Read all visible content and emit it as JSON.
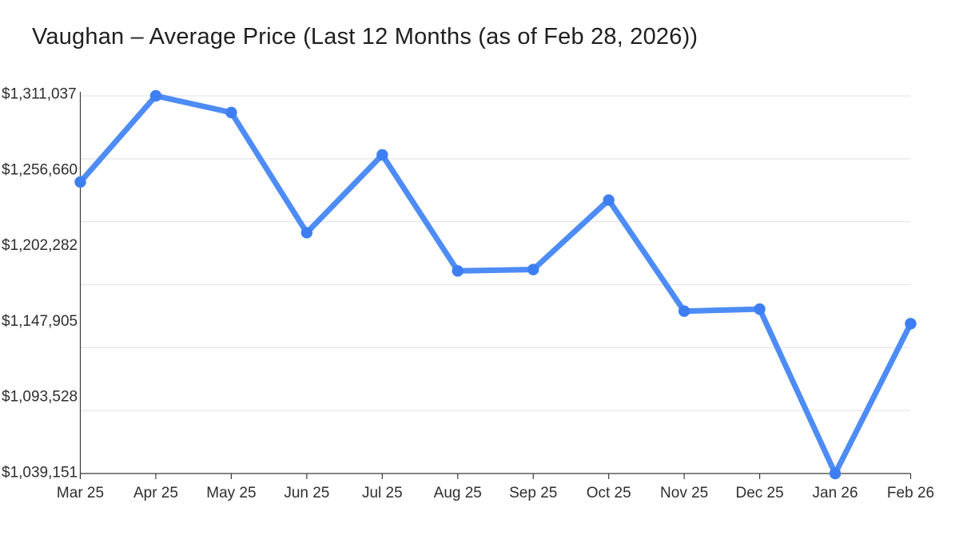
{
  "chart_data": {
    "type": "line",
    "title": "Vaughan – Average Price (Last 12 Months (as of Feb 28, 2026))",
    "categories": [
      "Mar 25",
      "Apr 25",
      "May 25",
      "Jun 25",
      "Jul 25",
      "Aug 25",
      "Sep 25",
      "Oct 25",
      "Nov 25",
      "Dec 25",
      "Jan 26",
      "Feb 26"
    ],
    "series": [
      {
        "name": "Average Price",
        "values": [
          1249000,
          1311037,
          1299000,
          1212500,
          1268500,
          1185000,
          1186000,
          1236000,
          1156000,
          1157500,
          1039151,
          1147000
        ]
      }
    ],
    "y_tick_labels": [
      "$1,311,037",
      "$1,256,660",
      "$1,202,282",
      "$1,147,905",
      "$1,093,528",
      "$1,039,151"
    ],
    "ylim": [
      1039151,
      1311037
    ],
    "xlabel": "",
    "ylabel": "",
    "grid": "horizontal-only",
    "legend": "none",
    "colors": {
      "line": "#4e8cf5",
      "marker": "#3d7ff2",
      "gridline": "#e7e7e9",
      "axis": "#3a3a3a",
      "tick_text": "#2e2e2e",
      "title_text": "#1f1f1f",
      "background": "#ffffff"
    }
  }
}
